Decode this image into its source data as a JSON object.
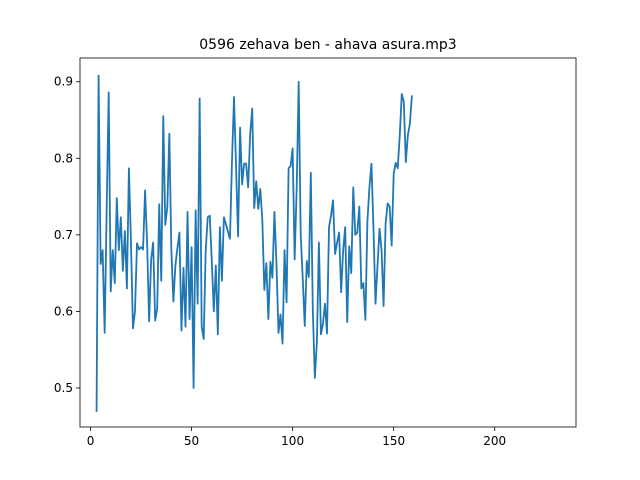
{
  "chart_data": {
    "type": "line",
    "title": "0596 zehava ben - ahava asura.mp3",
    "xlabel": "",
    "ylabel": "",
    "xlim": [
      -5.2,
      240.2
    ],
    "ylim": [
      0.449,
      0.931
    ],
    "xticks": [
      0,
      50,
      100,
      150,
      200
    ],
    "yticks": [
      0.5,
      0.6,
      0.7,
      0.8,
      0.9
    ],
    "grid": false,
    "line_color": "#1f77b4",
    "x_start": 3,
    "x_step": 1,
    "values": [
      0.47,
      0.908,
      0.662,
      0.68,
      0.572,
      0.735,
      0.886,
      0.626,
      0.68,
      0.637,
      0.748,
      0.68,
      0.723,
      0.653,
      0.705,
      0.63,
      0.787,
      0.692,
      0.578,
      0.6,
      0.689,
      0.681,
      0.684,
      0.681,
      0.758,
      0.69,
      0.587,
      0.668,
      0.69,
      0.588,
      0.604,
      0.74,
      0.64,
      0.855,
      0.713,
      0.736,
      0.832,
      0.68,
      0.613,
      0.66,
      0.683,
      0.703,
      0.575,
      0.657,
      0.58,
      0.73,
      0.59,
      0.684,
      0.5,
      0.732,
      0.61,
      0.878,
      0.58,
      0.564,
      0.68,
      0.723,
      0.725,
      0.666,
      0.6,
      0.66,
      0.57,
      0.71,
      0.64,
      0.723,
      0.714,
      0.704,
      0.695,
      0.796,
      0.88,
      0.79,
      0.698,
      0.84,
      0.766,
      0.793,
      0.793,
      0.762,
      0.832,
      0.865,
      0.735,
      0.77,
      0.734,
      0.76,
      0.72,
      0.628,
      0.663,
      0.59,
      0.665,
      0.644,
      0.73,
      0.663,
      0.572,
      0.596,
      0.558,
      0.68,
      0.612,
      0.787,
      0.79,
      0.813,
      0.668,
      0.76,
      0.9,
      0.7,
      0.643,
      0.581,
      0.666,
      0.645,
      0.781,
      0.6,
      0.513,
      0.56,
      0.69,
      0.57,
      0.584,
      0.61,
      0.571,
      0.71,
      0.725,
      0.745,
      0.675,
      0.69,
      0.703,
      0.625,
      0.68,
      0.71,
      0.586,
      0.685,
      0.65,
      0.762,
      0.7,
      0.703,
      0.737,
      0.63,
      0.637,
      0.589,
      0.718,
      0.762,
      0.793,
      0.708,
      0.61,
      0.66,
      0.708,
      0.68,
      0.607,
      0.714,
      0.741,
      0.737,
      0.686,
      0.78,
      0.794,
      0.787,
      0.83,
      0.884,
      0.874,
      0.795,
      0.83,
      0.845,
      0.881
    ]
  }
}
